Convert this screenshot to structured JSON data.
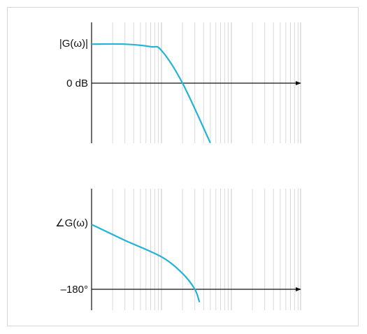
{
  "magnitude_plot": {
    "label": "|G(ω)|",
    "reference_label": "0 dB"
  },
  "phase_plot": {
    "label": "∠G(ω)",
    "reference_label": "–180°"
  },
  "chart_data": [
    {
      "type": "line",
      "title": "",
      "xlabel": "",
      "ylabel": "|G(ω)|",
      "x_scale": "log",
      "grid": true,
      "annotations": [
        "0 dB"
      ],
      "series": [
        {
          "values": [
            [
              0.1,
              0.62
            ],
            [
              0.3,
              0.62
            ],
            [
              0.7,
              0.58
            ],
            [
              1.0,
              0.52
            ],
            [
              2.0,
              0.0
            ],
            [
              5.0,
              -0.95
            ]
          ]
        }
      ],
      "color": "#23b3d6"
    },
    {
      "type": "line",
      "title": "",
      "xlabel": "",
      "ylabel": "∠G(ω)",
      "x_scale": "log",
      "grid": true,
      "annotations": [
        "–180°"
      ],
      "series": [
        {
          "values": [
            [
              0.1,
              -90
            ],
            [
              0.3,
              -112
            ],
            [
              1.0,
              -135
            ],
            [
              2.0,
              -158
            ],
            [
              3.0,
              -180
            ],
            [
              3.5,
              -198
            ]
          ]
        }
      ],
      "color": "#23b3d6"
    }
  ]
}
